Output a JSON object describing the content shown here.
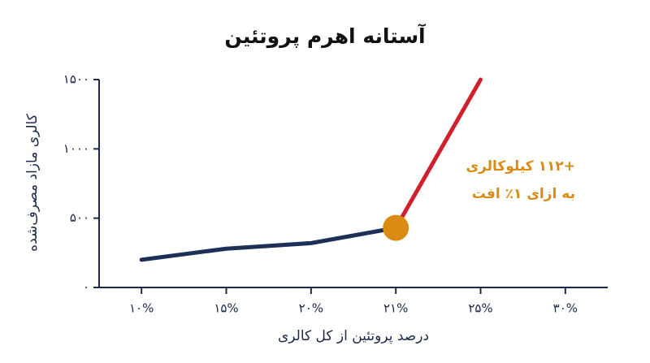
{
  "chart_data": {
    "type": "line",
    "title": "آستانه اهرم پروتئین",
    "x_label": "درصد پروتئین از کل کالری",
    "y_label": "کالری مازاد مصرف‌شده",
    "categories": [
      "۱۰%",
      "۱۵%",
      "۲۰%",
      "۲۱%",
      "۲۵%",
      "۳۰%"
    ],
    "series": [
      {
        "color": "#1b2f57",
        "values": [
          200,
          280,
          320,
          430,
          null,
          null
        ]
      },
      {
        "color": "#d0202e",
        "values": [
          null,
          null,
          null,
          430,
          1500,
          null
        ]
      }
    ],
    "ylim": [
      0,
      1500
    ],
    "yticks": [
      {
        "value": 0,
        "label": "۰"
      },
      {
        "value": 500,
        "label": "۵۰۰"
      },
      {
        "value": 1000,
        "label": "۱۰۰۰"
      },
      {
        "value": 1500,
        "label": "۱۵۰۰"
      }
    ],
    "annotation": {
      "lines": [
        "+۱۱۲ کیلوکالری",
        "به ازای ۱٪ افت"
      ],
      "color": "#d98b14"
    }
  }
}
